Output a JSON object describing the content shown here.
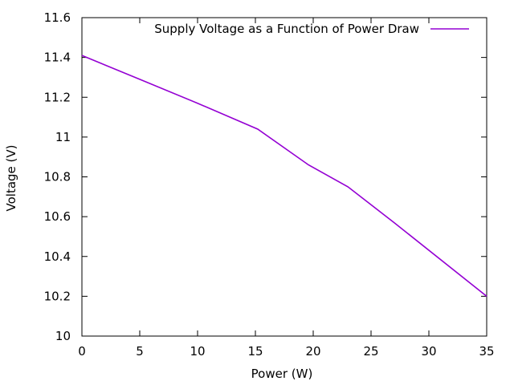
{
  "chart_data": {
    "type": "line",
    "xlabel": "Power (W)",
    "ylabel": "Voltage (V)",
    "xlim": [
      0,
      35
    ],
    "ylim": [
      10,
      11.6
    ],
    "x_ticks": [
      0,
      5,
      10,
      15,
      20,
      25,
      30,
      35
    ],
    "x_tick_labels": [
      "0",
      "5",
      "10",
      "15",
      "20",
      "25",
      "30",
      "35"
    ],
    "y_ticks": [
      10,
      10.2,
      10.4,
      10.6,
      10.8,
      11,
      11.2,
      11.4,
      11.6
    ],
    "y_tick_labels": [
      "10",
      "10.2",
      "10.4",
      "10.6",
      "10.8",
      "11",
      "11.2",
      "11.4",
      "11.6"
    ],
    "grid": false,
    "legend_position": "top-right",
    "series": [
      {
        "name": "Supply Voltage as a Function of Power Draw",
        "color": "#9400D3",
        "x": [
          0,
          5,
          10,
          15.2,
          19.6,
          23,
          27,
          35
        ],
        "y": [
          11.41,
          11.29,
          11.17,
          11.04,
          10.86,
          10.75,
          10.57,
          10.2
        ]
      }
    ]
  }
}
